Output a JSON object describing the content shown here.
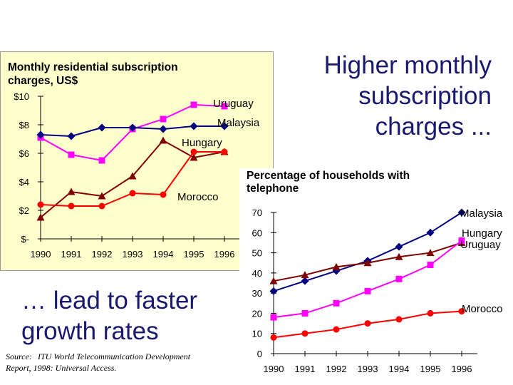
{
  "headline": {
    "line1": "Higher monthly",
    "line2": "subscription",
    "line3": "charges ..."
  },
  "lead": {
    "line1": "… lead to faster",
    "line2": "growth rates"
  },
  "source": {
    "label": "Source:",
    "text": "ITU World Telecommunication Development Report, 1998: Universal Access."
  },
  "colors": {
    "panel_bg": "#ffffcc",
    "headline": "#191970",
    "uruguay": "#ff00ff",
    "malaysia": "#000080",
    "hungary": "#800000",
    "morocco": "#ff0000"
  },
  "chart_data": [
    {
      "type": "line",
      "title_line1": "Monthly residential subscription",
      "title_line2": "charges, US$",
      "categories": [
        "1990",
        "1991",
        "1992",
        "1993",
        "1994",
        "1995",
        "1996"
      ],
      "ylim": [
        0,
        10
      ],
      "ytick_values": [
        10,
        8,
        6,
        4,
        2,
        0
      ],
      "ytick_labels": [
        "$10",
        "$8",
        "$6",
        "$4",
        "$2",
        "$-"
      ],
      "series": [
        {
          "name": "Uruguay",
          "label": "Uruguay",
          "color": "#ff00ff",
          "marker": "square",
          "values": [
            7.1,
            5.9,
            5.5,
            7.7,
            8.4,
            9.4,
            9.3
          ]
        },
        {
          "name": "Malaysia",
          "label": "Malaysia",
          "color": "#000080",
          "marker": "diamond",
          "values": [
            7.3,
            7.2,
            7.8,
            7.8,
            7.7,
            7.9,
            7.9
          ]
        },
        {
          "name": "Hungary",
          "label": "Hungary",
          "color": "#800000",
          "marker": "triangle",
          "values": [
            1.5,
            3.3,
            3.0,
            4.4,
            6.9,
            5.7,
            6.1
          ]
        },
        {
          "name": "Morocco",
          "label": "Morocco",
          "color": "#ff0000",
          "marker": "circle",
          "values": [
            2.4,
            2.3,
            2.3,
            3.2,
            3.1,
            6.1,
            6.1
          ]
        }
      ]
    },
    {
      "type": "line",
      "title_line1": "Percentage of households with",
      "title_line2": "telephone",
      "categories": [
        "1990",
        "1991",
        "1992",
        "1993",
        "1994",
        "1995",
        "1996"
      ],
      "ylim": [
        0,
        70
      ],
      "ytick_values": [
        70,
        60,
        50,
        40,
        30,
        20,
        10,
        0
      ],
      "ytick_labels": [
        "70",
        "60",
        "50",
        "40",
        "30",
        "20",
        "10",
        "0"
      ],
      "series": [
        {
          "name": "Malaysia",
          "label": "Malaysia",
          "color": "#000080",
          "marker": "diamond",
          "values": [
            31,
            36,
            41,
            46,
            53,
            60,
            70
          ]
        },
        {
          "name": "Hungary",
          "label": "Hungary",
          "color": "#800000",
          "marker": "triangle",
          "values": [
            36,
            39,
            43,
            45,
            48,
            50,
            55
          ]
        },
        {
          "name": "Uruguay",
          "label": "Uruguay",
          "color": "#ff00ff",
          "marker": "square",
          "values": [
            18,
            20,
            25,
            31,
            37,
            44,
            56
          ]
        },
        {
          "name": "Morocco",
          "label": "Morocco",
          "color": "#ff0000",
          "marker": "circle",
          "values": [
            8,
            10,
            12,
            15,
            17,
            20,
            21
          ]
        }
      ]
    }
  ]
}
